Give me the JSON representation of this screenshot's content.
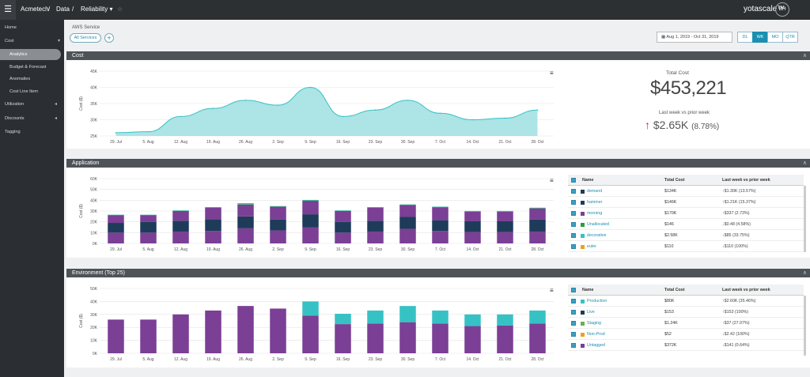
{
  "topbar": {
    "menu_icon": "hamburger-icon",
    "crumbs": [
      "Acmetech",
      "/",
      "Data",
      "/",
      "Reliability ▾"
    ],
    "star": "☆",
    "logo": "yotascale™",
    "avatar": "BH"
  },
  "sidebar": {
    "items": [
      {
        "label": "Home",
        "icon": "home-icon"
      },
      {
        "label": "Cost",
        "icon": "dollar-icon",
        "chev": "▾"
      },
      {
        "label": "Analytics",
        "active": true
      },
      {
        "label": "Budget & Forecast"
      },
      {
        "label": "Anomalies"
      },
      {
        "label": "Cost Line Item"
      },
      {
        "label": "Utilization",
        "icon": "gauge-icon",
        "chev": "◂"
      },
      {
        "label": "Discounts",
        "icon": "tag-icon",
        "chev": "◂"
      },
      {
        "label": "Tagging",
        "icon": "tag-icon"
      }
    ]
  },
  "filter": {
    "label": "AWS Service",
    "chip": "All Services",
    "add": "+"
  },
  "daterange": {
    "icon": "calendar-icon",
    "value": "Aug 1, 2019 - Oct 31, 2019"
  },
  "granularity": {
    "options": [
      "DL",
      "WK",
      "MO",
      "QTR"
    ],
    "selected": "WK"
  },
  "sections": {
    "cost": "Cost",
    "application": "Application",
    "environment": "Environment (Top 25)",
    "collapse": "∧",
    "menu": "≡"
  },
  "summary": {
    "total_label": "Total Cost",
    "total": "$453,221",
    "lw_label": "Last week vs prior week",
    "lw_arrow": "↑",
    "lw_value": "$2.65K",
    "lw_pct": "(8.78%)"
  },
  "colors": {
    "teal": "#36c2c4",
    "purple": "#7b3f95",
    "navy": "#1f3b5a"
  },
  "chart_data": [
    {
      "type": "area",
      "ylabel": "Cost ($)",
      "ylim": [
        25000,
        45000
      ],
      "yticks": [
        "25K",
        "30K",
        "35K",
        "40K",
        "45K"
      ],
      "categories": [
        "29. Jul",
        "5. Aug",
        "12. Aug",
        "19. Aug",
        "26. Aug",
        "2. Sep",
        "9. Sep",
        "16. Sep",
        "23. Sep",
        "30. Sep",
        "7. Oct",
        "14. Oct",
        "21. Oct",
        "28. Oct"
      ],
      "values": [
        26000,
        26300,
        31000,
        33500,
        36000,
        34500,
        40000,
        31000,
        33000,
        36000,
        32000,
        30000,
        30500,
        33000
      ]
    },
    {
      "type": "bar",
      "ylabel": "Cost ($)",
      "ylim": [
        0,
        60000
      ],
      "yticks": [
        "0K",
        "10K",
        "20K",
        "30K",
        "40K",
        "50K",
        "60K"
      ],
      "categories": [
        "29. Jul",
        "5. Aug",
        "12. Aug",
        "19. Aug",
        "26. Aug",
        "2. Sep",
        "9. Sep",
        "16. Sep",
        "23. Sep",
        "30. Sep",
        "7. Oct",
        "14. Oct",
        "21. Oct",
        "28. Oct"
      ],
      "series": [
        {
          "name": "morning",
          "color": "#7b3f95",
          "values": [
            10000,
            10000,
            11000,
            11500,
            14000,
            12000,
            15000,
            10000,
            11000,
            13500,
            11500,
            10500,
            10500,
            11000
          ]
        },
        {
          "name": "hammer",
          "color": "#1f3b5a",
          "values": [
            9000,
            10000,
            10000,
            11000,
            11000,
            10000,
            12000,
            10000,
            10000,
            11000,
            10000,
            10000,
            10000,
            11000
          ]
        },
        {
          "name": "demand",
          "color": "#7b3f95",
          "values": [
            7000,
            6000,
            9000,
            10500,
            11000,
            12000,
            12500,
            10000,
            12000,
            11000,
            12000,
            9000,
            9000,
            10500
          ]
        },
        {
          "name": "Unallocated",
          "color": "#2a9d3c",
          "values": [
            300,
            300,
            300,
            300,
            300,
            300,
            300,
            300,
            300,
            300,
            300,
            300,
            300,
            300
          ]
        },
        {
          "name": "decorative",
          "color": "#36c2c4",
          "values": [
            300,
            300,
            300,
            300,
            1000,
            300,
            500,
            300,
            300,
            300,
            300,
            300,
            300,
            300
          ]
        }
      ]
    },
    {
      "type": "bar",
      "ylabel": "Cost ($)",
      "ylim": [
        0,
        50000
      ],
      "yticks": [
        "0K",
        "10K",
        "20K",
        "30K",
        "40K",
        "50K"
      ],
      "categories": [
        "29. Jul",
        "5. Aug",
        "12. Aug",
        "19. Aug",
        "26. Aug",
        "2. Sep",
        "9. Sep",
        "16. Sep",
        "23. Sep",
        "30. Sep",
        "7. Oct",
        "14. Oct",
        "21. Oct",
        "28. Oct"
      ],
      "series": [
        {
          "name": "Untagged",
          "color": "#7b3f95",
          "values": [
            26000,
            26000,
            30000,
            33000,
            36500,
            34500,
            29000,
            22500,
            23000,
            24000,
            23000,
            21000,
            21500,
            23000
          ]
        },
        {
          "name": "Production",
          "color": "#36c2c4",
          "values": [
            0,
            0,
            0,
            0,
            0,
            0,
            11000,
            8000,
            10000,
            12500,
            10000,
            9000,
            8500,
            10000
          ]
        }
      ]
    }
  ],
  "app_table": {
    "headers": [
      "Name",
      "Total Cost",
      "Last week vs prior week"
    ],
    "sort": "⇕",
    "rows": [
      {
        "name": "demand",
        "color": "#1f3b5a",
        "cost": "$134K",
        "chg": "$1.30K (13.57%)",
        "dir": "pos"
      },
      {
        "name": "hammer",
        "color": "#1f3b5a",
        "cost": "$146K",
        "chg": "$1.21K (15.37%)",
        "dir": "pos"
      },
      {
        "name": "morning",
        "color": "#7b3f95",
        "cost": "$170K",
        "chg": "$337 (2.73%)",
        "dir": "pos"
      },
      {
        "name": "Unallocated",
        "color": "#2a9d3c",
        "cost": "$146",
        "chg": "$0.48 (4.58%)",
        "dir": "neg"
      },
      {
        "name": "decorative",
        "color": "#36c2c4",
        "cost": "$2.58K",
        "chg": "$85 (33.75%)",
        "dir": "neg"
      },
      {
        "name": "euler",
        "color": "#f0a020",
        "cost": "$110",
        "chg": "$110 (100%)",
        "dir": "neg"
      }
    ]
  },
  "env_table": {
    "headers": [
      "Name",
      "Total Cost",
      "Last week vs prior week"
    ],
    "sort": "⇕",
    "rows": [
      {
        "name": "Production",
        "color": "#36c2c4",
        "cost": "$80K",
        "chg": "$2.60K (35.46%)",
        "dir": "pos"
      },
      {
        "name": "Live",
        "color": "#1f3b5a",
        "cost": "$153",
        "chg": "$153 (100%)",
        "dir": "pos"
      },
      {
        "name": "Staging",
        "color": "#6ab04c",
        "cost": "$1.24K",
        "chg": "$37 (27.07%)",
        "dir": "pos"
      },
      {
        "name": "Non-Prod",
        "color": "#f0a020",
        "cost": "$52",
        "chg": "$2.42 (100%)",
        "dir": "neg"
      },
      {
        "name": "Untagged",
        "color": "#7b3f95",
        "cost": "$372K",
        "chg": "$141 (0.64%)",
        "dir": "neg"
      }
    ]
  }
}
